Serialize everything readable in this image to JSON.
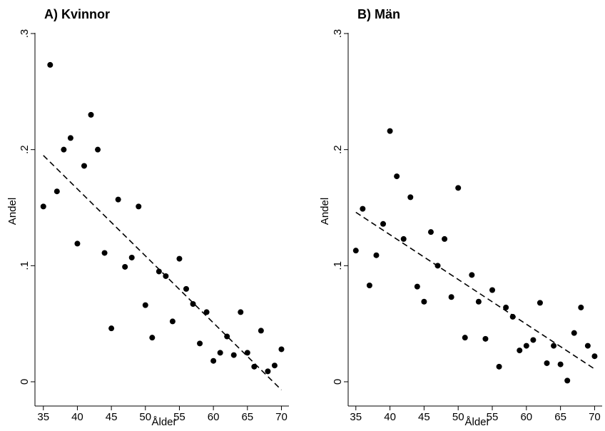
{
  "chart_data": [
    {
      "type": "scatter",
      "title": "A) Kvinnor",
      "xlabel": "Ålder",
      "ylabel": "Andel",
      "xlim": [
        34.5,
        71
      ],
      "ylim": [
        0,
        0.3
      ],
      "xticks": [
        "35",
        "40",
        "45",
        "50",
        "55",
        "60",
        "65",
        "70"
      ],
      "xtick_values": [
        35,
        40,
        45,
        50,
        55,
        60,
        65,
        70
      ],
      "yticks": [
        "0",
        ".1",
        ".2",
        ".3"
      ],
      "ytick_values": [
        0,
        0.1,
        0.2,
        0.3
      ],
      "grid": false,
      "series": [
        {
          "points": [
            [
              35,
              0.151
            ],
            [
              36,
              0.273
            ],
            [
              37,
              0.164
            ],
            [
              38,
              0.2
            ],
            [
              39,
              0.21
            ],
            [
              40,
              0.119
            ],
            [
              41,
              0.186
            ],
            [
              42,
              0.23
            ],
            [
              43,
              0.2
            ],
            [
              44,
              0.111
            ],
            [
              45,
              0.046
            ],
            [
              46,
              0.157
            ],
            [
              47,
              0.099
            ],
            [
              48,
              0.107
            ],
            [
              49,
              0.151
            ],
            [
              50,
              0.066
            ],
            [
              51,
              0.038
            ],
            [
              52,
              0.095
            ],
            [
              53,
              0.091
            ],
            [
              54,
              0.052
            ],
            [
              55,
              0.106
            ],
            [
              56,
              0.08
            ],
            [
              57,
              0.067
            ],
            [
              58,
              0.033
            ],
            [
              59,
              0.06
            ],
            [
              60,
              0.018
            ],
            [
              61,
              0.025
            ],
            [
              62,
              0.039
            ],
            [
              63,
              0.023
            ],
            [
              64,
              0.06
            ],
            [
              65,
              0.025
            ],
            [
              66,
              0.013
            ],
            [
              67,
              0.044
            ],
            [
              68,
              0.009
            ],
            [
              69,
              0.014
            ],
            [
              70,
              0.028
            ]
          ],
          "color": "#000000"
        }
      ],
      "fit_line": {
        "style": "dashed",
        "x": [
          35,
          70
        ],
        "y": [
          0.195,
          -0.007
        ],
        "color": "#000000"
      }
    },
    {
      "type": "scatter",
      "title": "B) Män",
      "xlabel": "Ålder",
      "ylabel": "Andel",
      "xlim": [
        34.5,
        71
      ],
      "ylim": [
        0,
        0.3
      ],
      "xticks": [
        "35",
        "40",
        "45",
        "50",
        "55",
        "60",
        "65",
        "70"
      ],
      "xtick_values": [
        35,
        40,
        45,
        50,
        55,
        60,
        65,
        70
      ],
      "yticks": [
        "0",
        ".1",
        ".2",
        ".3"
      ],
      "ytick_values": [
        0,
        0.1,
        0.2,
        0.3
      ],
      "grid": false,
      "series": [
        {
          "points": [
            [
              35,
              0.113
            ],
            [
              36,
              0.149
            ],
            [
              37,
              0.083
            ],
            [
              38,
              0.109
            ],
            [
              39,
              0.136
            ],
            [
              40,
              0.216
            ],
            [
              41,
              0.177
            ],
            [
              42,
              0.123
            ],
            [
              43,
              0.159
            ],
            [
              44,
              0.082
            ],
            [
              45,
              0.069
            ],
            [
              46,
              0.129
            ],
            [
              47,
              0.1
            ],
            [
              48,
              0.123
            ],
            [
              49,
              0.073
            ],
            [
              50,
              0.167
            ],
            [
              51,
              0.038
            ],
            [
              52,
              0.092
            ],
            [
              53,
              0.069
            ],
            [
              54,
              0.037
            ],
            [
              55,
              0.079
            ],
            [
              56,
              0.013
            ],
            [
              57,
              0.064
            ],
            [
              58,
              0.056
            ],
            [
              59,
              0.027
            ],
            [
              60,
              0.031
            ],
            [
              61,
              0.036
            ],
            [
              62,
              0.068
            ],
            [
              63,
              0.016
            ],
            [
              64,
              0.031
            ],
            [
              65,
              0.015
            ],
            [
              66,
              0.001
            ],
            [
              67,
              0.042
            ],
            [
              68,
              0.064
            ],
            [
              69,
              0.031
            ],
            [
              70,
              0.022
            ]
          ],
          "color": "#000000"
        }
      ],
      "fit_line": {
        "style": "dashed",
        "x": [
          35,
          70
        ],
        "y": [
          0.146,
          0.011
        ],
        "color": "#000000"
      }
    }
  ]
}
